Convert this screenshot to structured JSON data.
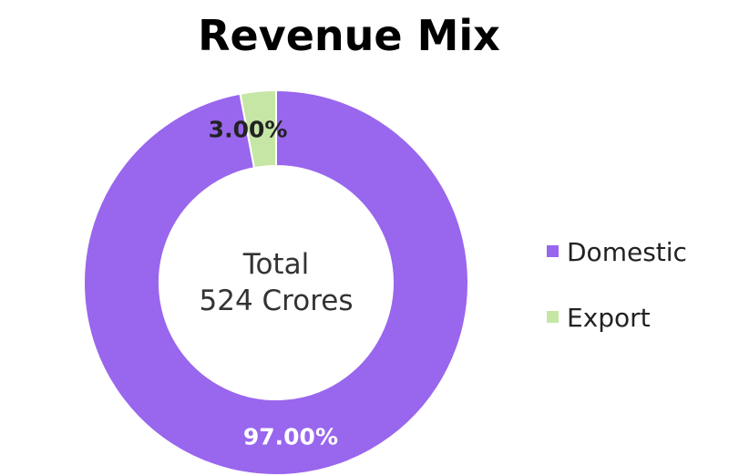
{
  "chart_data": {
    "type": "pie",
    "title": "Revenue Mix",
    "center_label": {
      "line1": "Total",
      "line2": "524 Crores"
    },
    "slices": [
      {
        "name": "Domestic",
        "value": 97.0,
        "label": "97.00%",
        "color": "#9966EE",
        "label_color": "#FFFFFF"
      },
      {
        "name": "Export",
        "value": 3.0,
        "label": "3.00%",
        "color": "#C6E6A6",
        "label_color": "#222222"
      }
    ],
    "legend_position": "right",
    "donut": true
  }
}
